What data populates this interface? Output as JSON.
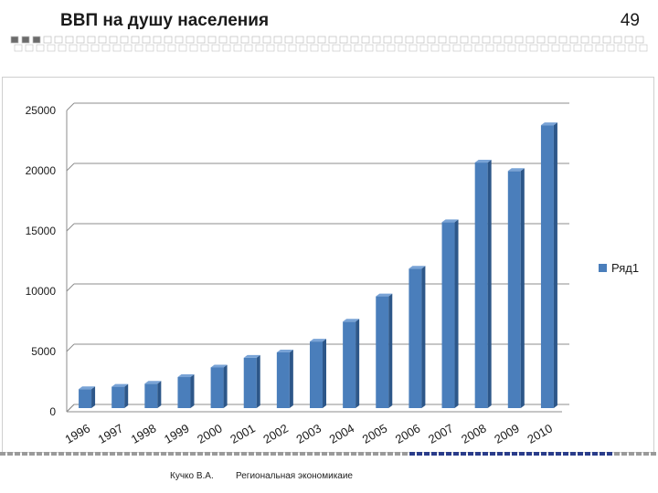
{
  "slide": {
    "title": "ВВП на душу населения",
    "page_number": "49",
    "footer_author": "Кучко В.А.",
    "footer_course": "Региональная экономикаие"
  },
  "colors": {
    "bar_front": "#4a7ebb",
    "bar_side": "#2d5789",
    "bar_top": "#79a3d6",
    "grid": "#8c8c8c",
    "band_dark": "#6b6b6b",
    "band_accent": "#2a3c8a"
  },
  "chart_data": {
    "type": "bar",
    "categories": [
      "1996",
      "1997",
      "1998",
      "1999",
      "2000",
      "2001",
      "2002",
      "2003",
      "2004",
      "2005",
      "2006",
      "2007",
      "2008",
      "2009",
      "2010"
    ],
    "series": [
      {
        "name": "Ряд1",
        "values": [
          1650,
          1850,
          2100,
          2650,
          3450,
          4250,
          4700,
          5600,
          7250,
          9350,
          11650,
          15500,
          20450,
          19750,
          23550
        ]
      }
    ],
    "ylim": [
      0,
      25000
    ],
    "yticks": [
      "0",
      "5000",
      "10000",
      "15000",
      "20000",
      "25000"
    ],
    "ytick_values": [
      0,
      5000,
      10000,
      15000,
      20000,
      25000
    ],
    "legend_position": "right",
    "grid": true
  }
}
